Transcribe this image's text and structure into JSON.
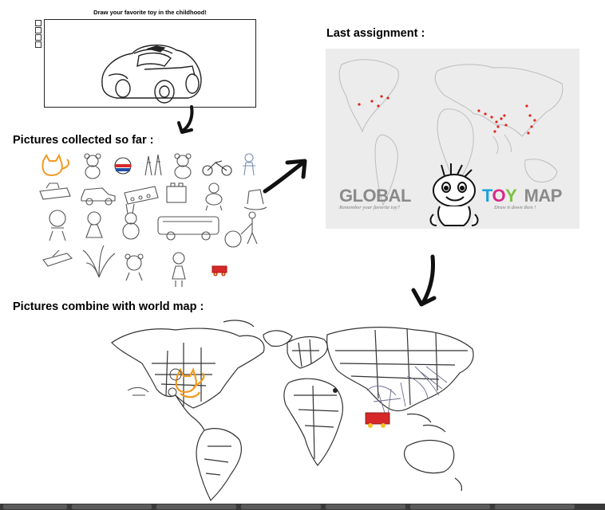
{
  "canvas": {
    "prompt": "Draw your favorite toy in the childhood!"
  },
  "sections": {
    "collected": "Pictures collected so far :",
    "last_assignment": "Last assignment :",
    "combine": "Pictures combine with world map :"
  },
  "poster": {
    "global": "GLOBAL",
    "toy": "TOY",
    "map": "MAP",
    "tagline_left": "Remember your favorite toy?",
    "tagline_right": "Draw it down then !"
  },
  "colors": {
    "toy_t": "#1aa0d8",
    "toy_o": "#d82a8c",
    "toy_y": "#7cc242",
    "map_word": "#8a8a8a",
    "global_word": "#8a8a8a",
    "city_marker": "#e0261e",
    "orange_sketch": "#f39a1f"
  },
  "gallery": {
    "items": [
      "cat-doodle",
      "teddy-bear",
      "ball",
      "dolls",
      "teddy-bear-2",
      "motorcycle",
      "doll-outline",
      "spaceship",
      "car",
      "toy-train",
      "blocks",
      "dog-toy",
      "rocking-horse",
      "baby-face",
      "girl-doll",
      "rabbit-toy",
      "bus",
      "man-with-hoop",
      "jet-plane",
      "plant",
      "bear-face",
      "girl",
      "red-cart"
    ]
  }
}
